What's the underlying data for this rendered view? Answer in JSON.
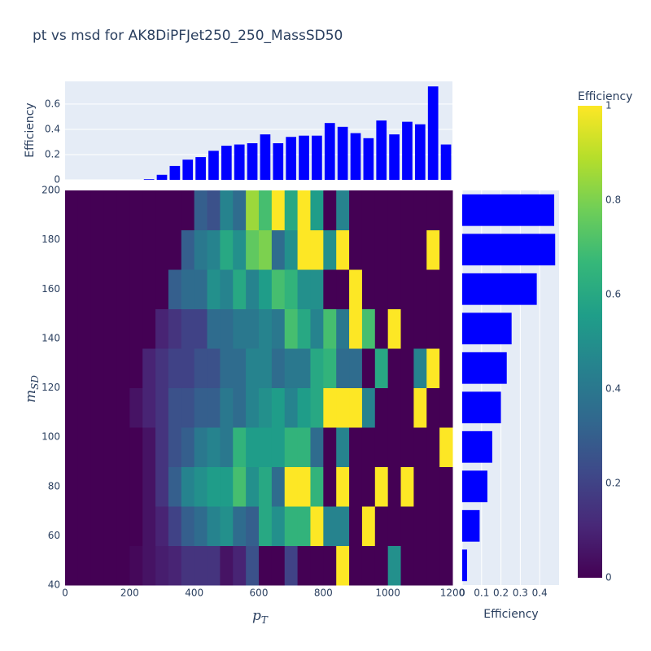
{
  "title": "pt vs msd for AK8DiPFJet250_250_MassSD50",
  "chart_data": [
    {
      "type": "heatmap",
      "xlabel": [
        "p",
        "T"
      ],
      "ylabel": [
        "m",
        "SD"
      ],
      "xbins": [
        0,
        40,
        80,
        120,
        160,
        200,
        240,
        280,
        320,
        360,
        400,
        440,
        480,
        520,
        560,
        600,
        640,
        680,
        720,
        760,
        800,
        840,
        880,
        920,
        960,
        1000,
        1040,
        1080,
        1120,
        1160,
        1200
      ],
      "ybins": [
        40,
        56,
        72,
        88,
        104,
        120,
        136,
        152,
        168,
        184,
        200
      ],
      "z": [
        [
          0,
          0,
          0,
          0,
          0,
          0.02,
          0.05,
          0.08,
          0.1,
          0.15,
          0.15,
          0.15,
          0.05,
          0.1,
          0.25,
          0,
          0,
          0.2,
          0,
          0,
          0,
          1,
          0,
          0,
          0,
          0.5,
          0,
          0,
          0,
          0
        ],
        [
          0,
          0,
          0,
          0,
          0,
          0,
          0.05,
          0.1,
          0.2,
          0.3,
          0.35,
          0.45,
          0.5,
          0.35,
          0.3,
          0.6,
          0.5,
          0.65,
          0.65,
          1,
          0.45,
          0.45,
          0,
          1,
          0,
          0,
          0,
          0,
          0,
          0
        ],
        [
          0,
          0,
          0,
          0,
          0,
          0,
          0.05,
          0.15,
          0.3,
          0.45,
          0.5,
          0.55,
          0.55,
          0.7,
          0.5,
          0.6,
          0.35,
          1,
          1,
          0.65,
          0,
          1,
          0,
          0,
          1,
          0,
          1,
          0,
          0,
          0
        ],
        [
          0,
          0,
          0,
          0,
          0,
          0,
          0.05,
          0.15,
          0.25,
          0.3,
          0.4,
          0.45,
          0.4,
          0.65,
          0.55,
          0.55,
          0.55,
          0.65,
          0.65,
          0.35,
          0,
          0.45,
          0,
          0,
          0,
          0,
          0,
          0,
          0,
          1
        ],
        [
          0,
          0,
          0,
          0,
          0,
          0.05,
          0.1,
          0.15,
          0.25,
          0.25,
          0.3,
          0.3,
          0.4,
          0.35,
          0.45,
          0.5,
          0.55,
          0.45,
          0.55,
          0.6,
          1,
          1,
          1,
          0.45,
          0,
          0,
          0,
          1,
          0,
          0
        ],
        [
          0,
          0,
          0,
          0,
          0,
          0,
          0.1,
          0.15,
          0.2,
          0.2,
          0.25,
          0.25,
          0.35,
          0.35,
          0.45,
          0.45,
          0.35,
          0.4,
          0.4,
          0.6,
          0.65,
          0.35,
          0.35,
          0,
          0.6,
          0,
          0,
          0.45,
          1,
          0
        ],
        [
          0,
          0,
          0,
          0,
          0,
          0,
          0,
          0.1,
          0.15,
          0.2,
          0.2,
          0.35,
          0.35,
          0.4,
          0.4,
          0.45,
          0.4,
          0.7,
          0.6,
          0.45,
          0.7,
          0.4,
          1,
          0.7,
          0,
          1,
          0,
          0,
          0,
          0
        ],
        [
          0,
          0,
          0,
          0,
          0,
          0,
          0,
          0,
          0.3,
          0.35,
          0.35,
          0.5,
          0.45,
          0.6,
          0.45,
          0.55,
          0.7,
          0.65,
          0.5,
          0.5,
          0,
          0,
          1,
          0,
          0,
          0,
          0,
          0,
          0,
          0
        ],
        [
          0,
          0,
          0,
          0,
          0,
          0,
          0,
          0,
          0,
          0.3,
          0.4,
          0.45,
          0.6,
          0.5,
          0.75,
          0.8,
          0.35,
          0.5,
          1,
          1,
          0.5,
          1,
          0,
          0,
          0,
          0,
          0,
          0,
          1,
          0
        ],
        [
          0,
          0,
          0,
          0,
          0,
          0,
          0,
          0,
          0,
          0,
          0.3,
          0.25,
          0.45,
          0.35,
          0.85,
          0.7,
          1,
          0.6,
          1,
          0.55,
          0,
          0.45,
          0,
          0,
          0,
          0,
          0,
          0,
          0,
          0
        ]
      ],
      "xlim": [
        0,
        1200
      ],
      "xticks": [
        0,
        200,
        400,
        600,
        800,
        1000,
        1200
      ],
      "ylim": [
        40,
        200
      ],
      "yticks": [
        40,
        60,
        80,
        100,
        120,
        140,
        160,
        180,
        200
      ],
      "zlim": [
        0,
        1
      ],
      "colorbar_title": "Efficiency",
      "colorbar_ticks": [
        0,
        0.2,
        0.4,
        0.6,
        0.8,
        1
      ],
      "colorscale": [
        "#440154",
        "#482878",
        "#3e4989",
        "#31688e",
        "#26828e",
        "#1f9e89",
        "#35b779",
        "#6ece58",
        "#b5de2b",
        "#fde725"
      ]
    },
    {
      "type": "histogram",
      "orientation": "vertical",
      "ylabel": "Efficiency",
      "color": "#0000ff",
      "bins": [
        0,
        40,
        80,
        120,
        160,
        200,
        240,
        280,
        320,
        360,
        400,
        440,
        480,
        520,
        560,
        600,
        640,
        680,
        720,
        760,
        800,
        840,
        880,
        920,
        960,
        1000,
        1040,
        1080,
        1120,
        1160,
        1200
      ],
      "values": [
        0,
        0,
        0,
        0,
        0,
        0,
        0.005,
        0.04,
        0.11,
        0.16,
        0.18,
        0.23,
        0.27,
        0.28,
        0.29,
        0.36,
        0.29,
        0.34,
        0.35,
        0.35,
        0.45,
        0.42,
        0.37,
        0.33,
        0.47,
        0.36,
        0.46,
        0.44,
        0.74,
        0.28
      ],
      "xlim": [
        0,
        1200
      ],
      "ylim": [
        0,
        0.78
      ],
      "yticks": [
        0,
        0.2,
        0.4,
        0.6
      ],
      "grid": true
    },
    {
      "type": "histogram",
      "orientation": "horizontal",
      "xlabel": "Efficiency",
      "color": "#0000ff",
      "bins": [
        40,
        56,
        72,
        88,
        104,
        120,
        136,
        152,
        168,
        184,
        200
      ],
      "values": [
        0.025,
        0.09,
        0.13,
        0.155,
        0.2,
        0.23,
        0.255,
        0.385,
        0.48,
        0.475
      ],
      "ylim": [
        40,
        200
      ],
      "xlim": [
        0,
        0.5
      ],
      "xticks": [
        0,
        0.1,
        0.2,
        0.3,
        0.4
      ],
      "grid": true
    }
  ]
}
